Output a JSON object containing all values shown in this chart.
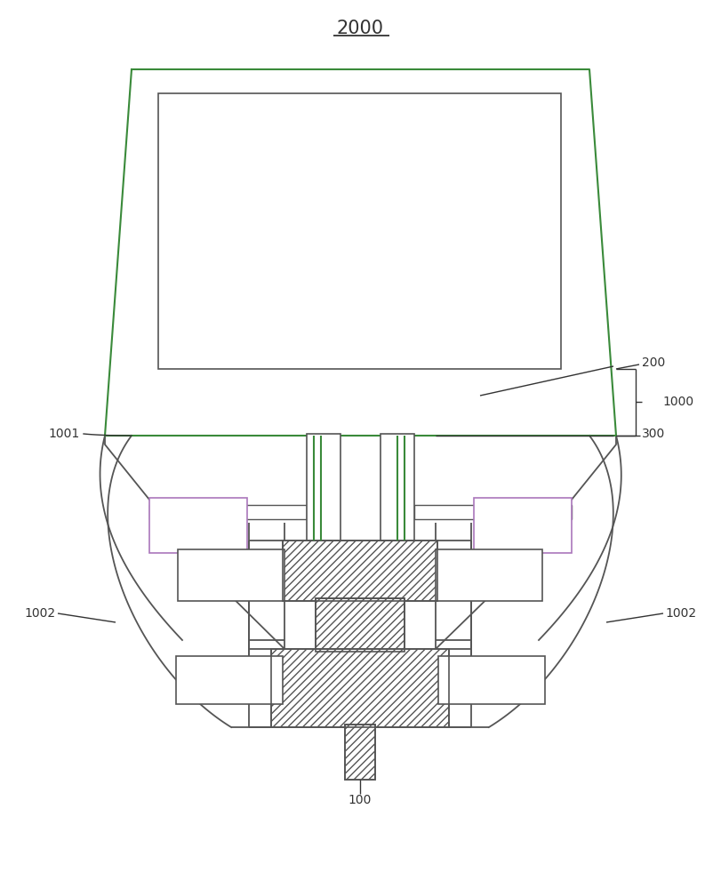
{
  "title": "2000",
  "bg": "#ffffff",
  "lc": "#555555",
  "gc": "#3a8a3a",
  "pc": "#aa77bb",
  "fig_w": 8.11,
  "fig_h": 10.0,
  "dpi": 100
}
